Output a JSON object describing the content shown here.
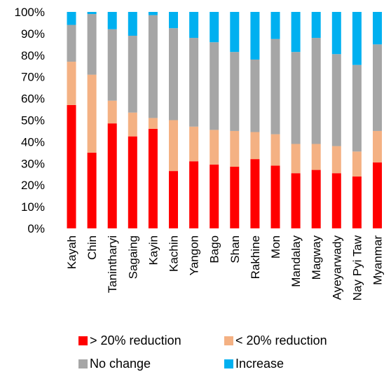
{
  "chart_data": {
    "type": "bar",
    "stacked": true,
    "normalized_percent": true,
    "categories": [
      "Kayah",
      "Chin",
      "Tanintharyi",
      "Sagaing",
      "Kayin",
      "Kachin",
      "Yangon",
      "Bago",
      "Shan",
      "Rakhine",
      "Mon",
      "Mandalay",
      "Magway",
      "Ayeyarwady",
      "Nay Pyi Taw",
      "Myanmar"
    ],
    "series": [
      {
        "name": "> 20% reduction",
        "color": "#FF0000",
        "values": [
          57,
          35,
          48.5,
          42.5,
          46,
          26.5,
          31,
          29.5,
          28.5,
          32,
          29,
          25.5,
          27,
          25.5,
          24,
          30.5
        ]
      },
      {
        "name": "< 20% reduction",
        "color": "#F4B183",
        "values": [
          20,
          36,
          10.5,
          11,
          5,
          23.5,
          16,
          16,
          16.5,
          12.5,
          14.5,
          13.5,
          12,
          12.5,
          11.5,
          14.5
        ]
      },
      {
        "name": "No change",
        "color": "#A6A6A6",
        "values": [
          17,
          28,
          33,
          35.5,
          47.5,
          42.5,
          41,
          40.5,
          36.5,
          33.5,
          44,
          42.5,
          49,
          42.5,
          40,
          40
        ]
      },
      {
        "name": "Increase",
        "color": "#00B0F0",
        "values": [
          6,
          1,
          8,
          11,
          1.5,
          7.5,
          12,
          14,
          18.5,
          22,
          12.5,
          18.5,
          12,
          19.5,
          24.5,
          15
        ]
      }
    ],
    "yticks": [
      "0%",
      "10%",
      "20%",
      "30%",
      "40%",
      "50%",
      "60%",
      "70%",
      "80%",
      "90%",
      "100%"
    ],
    "ylim": [
      0,
      100
    ],
    "grid": false,
    "legend_position": "bottom"
  }
}
